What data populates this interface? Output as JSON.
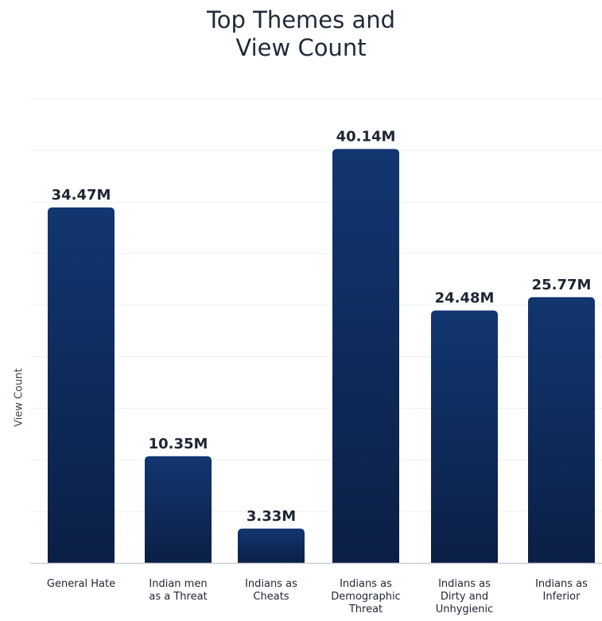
{
  "chart_data": {
    "type": "bar",
    "title": [
      "Top Themes and",
      "View Count"
    ],
    "xlabel": "",
    "ylabel": "View Count",
    "value_suffix": "M",
    "categories": [
      [
        "General Hate"
      ],
      [
        "Indian men",
        "as a Threat"
      ],
      [
        "Indians as",
        "Cheats"
      ],
      [
        "Indians as",
        "Demographic",
        "Threat"
      ],
      [
        "Indians as",
        "Dirty and",
        "Unhygienic"
      ],
      [
        "Indians as",
        "Inferior"
      ]
    ],
    "values": [
      34.47,
      10.35,
      3.33,
      40.14,
      24.48,
      25.77
    ],
    "data_labels": [
      "34.47M",
      "10.35M",
      "3.33M",
      "40.14M",
      "24.48M",
      "25.77M"
    ],
    "ylim": [
      0,
      45
    ],
    "grid": true,
    "legend": "none",
    "colors": {
      "bar_top": "#123670",
      "bar_bottom": "#0b1f45",
      "grid": "#eceff3",
      "axis": "#c9ced6"
    }
  }
}
